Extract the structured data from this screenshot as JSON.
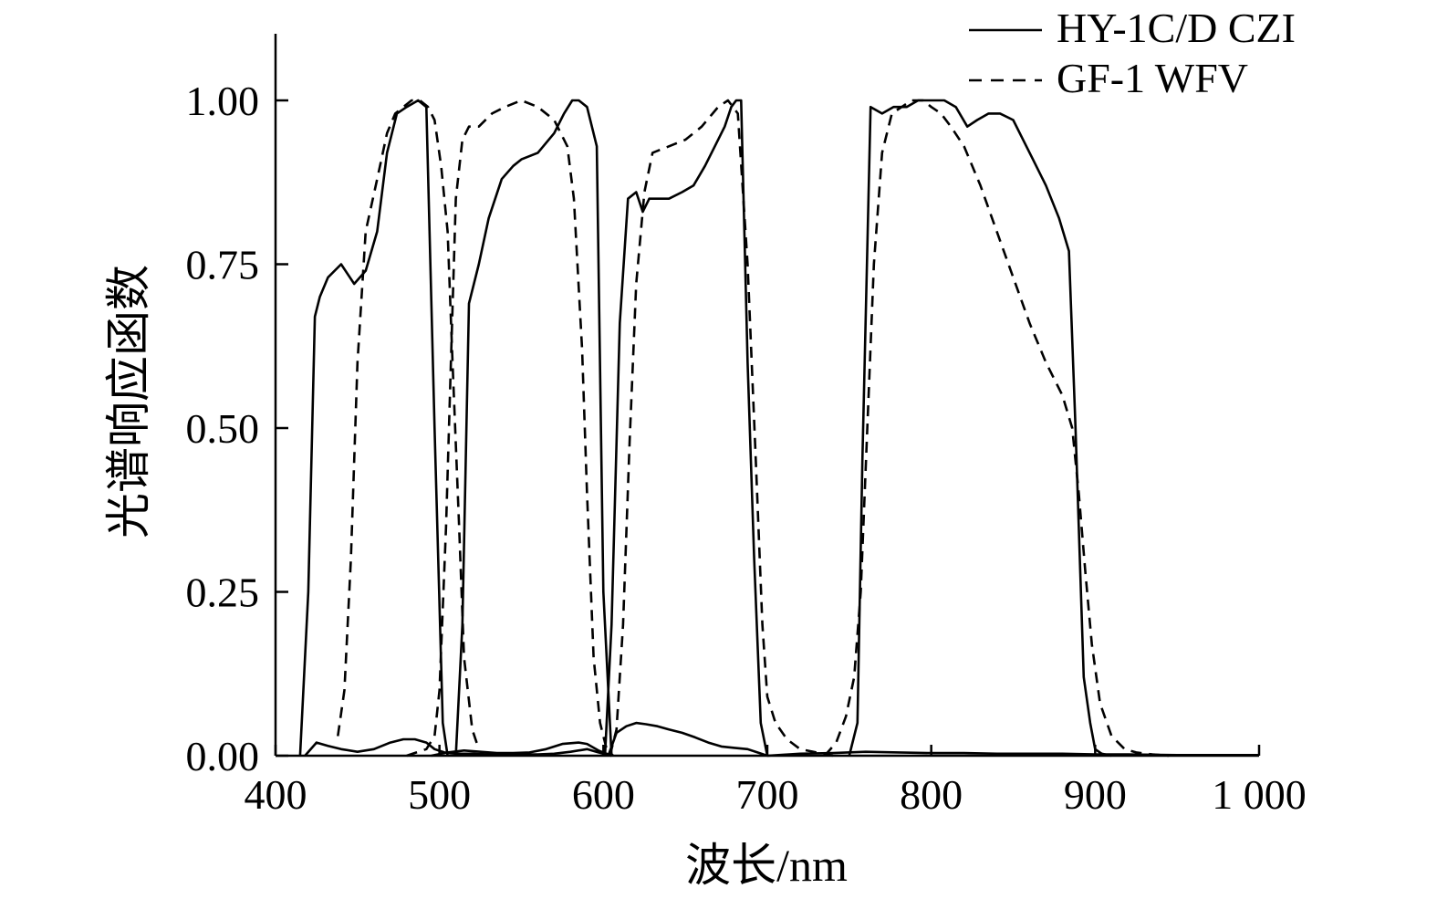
{
  "chart_data": {
    "type": "line",
    "title": "",
    "xlabel": "波长/nm",
    "ylabel": "光谱响应函数",
    "xlim": [
      400,
      1000
    ],
    "ylim": [
      0,
      1.1
    ],
    "xticks": [
      400,
      500,
      600,
      700,
      800,
      900,
      1000
    ],
    "xtick_labels": [
      "400",
      "500",
      "600",
      "700",
      "800",
      "900",
      "1 000"
    ],
    "yticks": [
      0,
      0.25,
      0.5,
      0.75,
      1.0
    ],
    "ytick_labels": [
      "0.00",
      "0.25",
      "0.50",
      "0.75",
      "1.00"
    ],
    "grid": false,
    "legend_position": "top-right",
    "series": [
      {
        "name": "HY-1C/D CZI",
        "style": "solid",
        "color": "#000000",
        "bands": [
          {
            "x": [
              415,
              420,
              424,
              427,
              432,
              440,
              448,
              455,
              462,
              468,
              474,
              480,
              487,
              492,
              497,
              502,
              505
            ],
            "y": [
              0,
              0.25,
              0.67,
              0.7,
              0.73,
              0.75,
              0.72,
              0.74,
              0.8,
              0.92,
              0.98,
              0.99,
              1.0,
              0.99,
              0.5,
              0.05,
              0
            ]
          },
          {
            "x": [
              418,
              425,
              432,
              440,
              450,
              460,
              470,
              478,
              485,
              492,
              497,
              503,
              510,
              520,
              530,
              540,
              550,
              560,
              570,
              580,
              590,
              597,
              605
            ],
            "y": [
              0,
              0.02,
              0.015,
              0.01,
              0.006,
              0.01,
              0.02,
              0.025,
              0.025,
              0.02,
              0.01,
              0.005,
              0.003,
              0.003,
              0.002,
              0.002,
              0.002,
              0.002,
              0.003,
              0.006,
              0.01,
              0.005,
              0
            ]
          },
          {
            "x": [
              510,
              514,
              518,
              524,
              530,
              538,
              545,
              550,
              560,
              570,
              576,
              581,
              585,
              590,
              596,
              600,
              605
            ],
            "y": [
              0,
              0.2,
              0.69,
              0.75,
              0.82,
              0.88,
              0.9,
              0.91,
              0.92,
              0.95,
              0.98,
              1.0,
              1.0,
              0.99,
              0.93,
              0.25,
              0
            ]
          },
          {
            "x": [
              495,
              505,
              515,
              525,
              535,
              545,
              555,
              565,
              575,
              585,
              590,
              597,
              605
            ],
            "y": [
              0,
              0.005,
              0.008,
              0.006,
              0.004,
              0.004,
              0.005,
              0.01,
              0.018,
              0.02,
              0.018,
              0.008,
              0
            ]
          },
          {
            "x": [
              601,
              605,
              610,
              615,
              620,
              624,
              628,
              633,
              640,
              648,
              655,
              662,
              668,
              674,
              678,
              681,
              684,
              688,
              692,
              696,
              700
            ],
            "y": [
              0,
              0.2,
              0.66,
              0.85,
              0.86,
              0.83,
              0.85,
              0.85,
              0.85,
              0.86,
              0.87,
              0.9,
              0.93,
              0.96,
              0.99,
              1.0,
              1.0,
              0.6,
              0.3,
              0.05,
              0
            ]
          },
          {
            "x": [
              603,
              608,
              614,
              620,
              626,
              633,
              640,
              648,
              656,
              664,
              672,
              680,
              688,
              694,
              700
            ],
            "y": [
              0,
              0.035,
              0.045,
              0.05,
              0.048,
              0.045,
              0.04,
              0.035,
              0.028,
              0.02,
              0.014,
              0.012,
              0.01,
              0.005,
              0
            ]
          },
          {
            "x": [
              750,
              755,
              758,
              763,
              770,
              777,
              785,
              792,
              800,
              808,
              815,
              822,
              828,
              835,
              842,
              850,
              856,
              862,
              870,
              878,
              884,
              888,
              893,
              897,
              900,
              904,
              910
            ],
            "y": [
              0,
              0.05,
              0.45,
              0.99,
              0.98,
              0.99,
              0.99,
              1.0,
              1.0,
              1.0,
              0.99,
              0.96,
              0.97,
              0.98,
              0.98,
              0.97,
              0.94,
              0.91,
              0.87,
              0.82,
              0.77,
              0.5,
              0.12,
              0.05,
              0.01,
              0.003,
              0
            ]
          },
          {
            "x": [
              700,
              720,
              740,
              760,
              780,
              800,
              820,
              840,
              860,
              880,
              900,
              920,
              950,
              980,
              1000
            ],
            "y": [
              0,
              0.003,
              0.004,
              0.006,
              0.005,
              0.004,
              0.004,
              0.003,
              0.003,
              0.003,
              0.002,
              0.002,
              0.001,
              0.001,
              0.001
            ]
          }
        ]
      },
      {
        "name": "GF-1 WFV",
        "style": "dashed",
        "color": "#000000",
        "bands": [
          {
            "x": [
              438,
              442,
              446,
              450,
              455,
              462,
              468,
              473,
              478,
              483,
              488,
              493,
              497,
              501,
              505,
              508,
              512,
              515,
              520,
              524
            ],
            "y": [
              0.03,
              0.1,
              0.3,
              0.6,
              0.8,
              0.88,
              0.95,
              0.98,
              0.99,
              1.0,
              1.0,
              0.99,
              0.97,
              0.9,
              0.8,
              0.6,
              0.35,
              0.15,
              0.04,
              0.01
            ]
          },
          {
            "x": [
              480,
              486,
              492,
              497,
              500,
              504,
              507,
              510,
              514,
              518,
              524,
              532,
              540,
              550,
              560,
              570,
              578,
              582,
              587,
              590,
              594,
              598,
              602,
              606
            ],
            "y": [
              0,
              0.005,
              0.01,
              0.03,
              0.1,
              0.35,
              0.6,
              0.85,
              0.94,
              0.96,
              0.96,
              0.98,
              0.99,
              1.0,
              0.99,
              0.97,
              0.93,
              0.85,
              0.62,
              0.4,
              0.15,
              0.05,
              0.01,
              0
            ]
          },
          {
            "x": [
              604,
              608,
              612,
              616,
              620,
              625,
              630,
              640,
              650,
              660,
              670,
              676,
              682,
              688,
              693,
              697,
              700,
              705,
              712,
              720,
              730,
              740
            ],
            "y": [
              0,
              0.04,
              0.2,
              0.48,
              0.72,
              0.86,
              0.92,
              0.93,
              0.94,
              0.96,
              0.99,
              1.0,
              0.98,
              0.75,
              0.45,
              0.2,
              0.09,
              0.05,
              0.025,
              0.01,
              0.005,
              0
            ]
          },
          {
            "x": [
              735,
              742,
              748,
              753,
              757,
              761,
              765,
              770,
              776,
              782,
              788,
              795,
              800,
              806,
              812,
              820,
              830,
              840,
              850,
              860,
              870,
              880,
              886,
              890,
              894,
              898,
              903,
              910,
              918,
              925,
              935,
              945
            ],
            "y": [
              0,
              0.02,
              0.06,
              0.12,
              0.25,
              0.5,
              0.75,
              0.92,
              0.98,
              0.99,
              1.0,
              1.0,
              0.99,
              0.98,
              0.96,
              0.93,
              0.87,
              0.8,
              0.73,
              0.66,
              0.6,
              0.55,
              0.5,
              0.4,
              0.28,
              0.17,
              0.08,
              0.03,
              0.01,
              0.005,
              0.002,
              0
            ]
          }
        ]
      }
    ]
  }
}
